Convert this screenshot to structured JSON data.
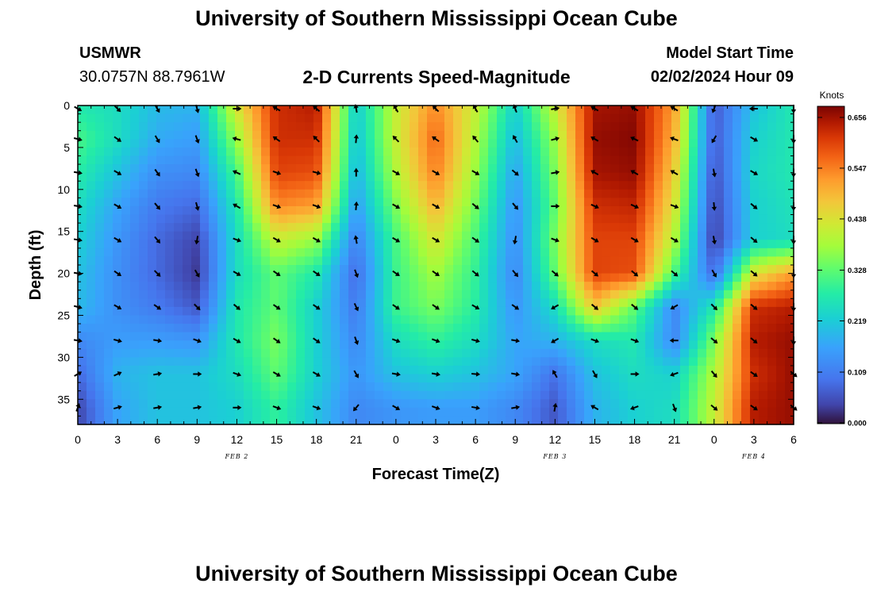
{
  "page": {
    "title": "University of Southern Mississippi Ocean Cube",
    "bottom_title": "University of Southern Mississippi Ocean Cube",
    "station": "USMWR",
    "coords": "30.0757N  88.7961W",
    "subtitle": "2-D Currents Speed-Magnitude",
    "model_start_label": "Model Start Time",
    "model_start_value": "02/02/2024 Hour 09"
  },
  "chart_data": {
    "type": "heatmap",
    "title": "2-D Currents Speed-Magnitude",
    "xlabel": "Forecast Time(Z)",
    "ylabel": "Depth (ft)",
    "x_tick_labels": [
      "0",
      "3",
      "6",
      "9",
      "12",
      "15",
      "18",
      "21",
      "0",
      "3",
      "6",
      "9",
      "12",
      "15",
      "18",
      "21",
      "0",
      "3",
      "6"
    ],
    "x_range_hours": [
      0,
      54
    ],
    "date_labels": [
      {
        "text": "FEB 2",
        "hour": 12
      },
      {
        "text": "FEB 3",
        "hour": 36
      },
      {
        "text": "FEB 4",
        "hour": 51
      }
    ],
    "y_ticks": [
      0,
      5,
      10,
      15,
      20,
      25,
      30,
      35
    ],
    "y_range_ft": [
      0,
      38
    ],
    "colorbar": {
      "units": "Knots",
      "tick_values": [
        "0.656",
        "0.547",
        "0.438",
        "0.328",
        "0.219",
        "0.109",
        "0.000"
      ],
      "min": 0.0,
      "max": 0.656
    },
    "depths_ft": [
      0,
      4,
      8,
      12,
      16,
      20,
      24,
      28,
      32,
      36
    ],
    "hours": [
      0,
      3,
      6,
      9,
      12,
      15,
      18,
      21,
      24,
      27,
      30,
      33,
      36,
      39,
      42,
      45,
      48,
      51,
      54
    ],
    "speed_knots": [
      [
        0.26,
        0.24,
        0.19,
        0.18,
        0.42,
        0.6,
        0.62,
        0.21,
        0.4,
        0.52,
        0.4,
        0.22,
        0.4,
        0.63,
        0.64,
        0.5,
        0.06,
        0.2,
        0.26
      ],
      [
        0.3,
        0.24,
        0.17,
        0.15,
        0.36,
        0.6,
        0.6,
        0.2,
        0.4,
        0.55,
        0.38,
        0.19,
        0.36,
        0.64,
        0.65,
        0.48,
        0.06,
        0.22,
        0.26
      ],
      [
        0.27,
        0.2,
        0.13,
        0.12,
        0.3,
        0.58,
        0.57,
        0.18,
        0.38,
        0.53,
        0.36,
        0.16,
        0.34,
        0.63,
        0.64,
        0.45,
        0.05,
        0.23,
        0.26
      ],
      [
        0.24,
        0.16,
        0.1,
        0.08,
        0.26,
        0.52,
        0.5,
        0.15,
        0.34,
        0.48,
        0.33,
        0.14,
        0.32,
        0.6,
        0.61,
        0.42,
        0.04,
        0.22,
        0.25
      ],
      [
        0.22,
        0.14,
        0.08,
        0.04,
        0.24,
        0.4,
        0.36,
        0.11,
        0.3,
        0.42,
        0.3,
        0.13,
        0.34,
        0.58,
        0.58,
        0.38,
        0.03,
        0.22,
        0.24
      ],
      [
        0.2,
        0.13,
        0.08,
        0.03,
        0.24,
        0.32,
        0.26,
        0.08,
        0.29,
        0.37,
        0.28,
        0.12,
        0.32,
        0.58,
        0.57,
        0.3,
        0.08,
        0.42,
        0.5
      ],
      [
        0.19,
        0.13,
        0.1,
        0.06,
        0.26,
        0.32,
        0.22,
        0.1,
        0.29,
        0.34,
        0.27,
        0.14,
        0.24,
        0.46,
        0.32,
        0.12,
        0.26,
        0.6,
        0.62
      ],
      [
        0.12,
        0.15,
        0.15,
        0.14,
        0.26,
        0.34,
        0.22,
        0.12,
        0.24,
        0.28,
        0.24,
        0.16,
        0.18,
        0.24,
        0.26,
        0.12,
        0.34,
        0.62,
        0.64
      ],
      [
        0.08,
        0.18,
        0.2,
        0.2,
        0.24,
        0.32,
        0.22,
        0.14,
        0.2,
        0.22,
        0.2,
        0.16,
        0.09,
        0.2,
        0.24,
        0.22,
        0.38,
        0.6,
        0.64
      ],
      [
        0.04,
        0.16,
        0.2,
        0.2,
        0.22,
        0.28,
        0.2,
        0.12,
        0.14,
        0.15,
        0.15,
        0.12,
        0.06,
        0.18,
        0.22,
        0.24,
        0.4,
        0.62,
        0.64
      ]
    ],
    "direction_deg": [
      [
        120,
        135,
        150,
        165,
        90,
        300,
        310,
        350,
        330,
        315,
        330,
        340,
        80,
        300,
        300,
        300,
        200,
        270,
        180
      ],
      [
        105,
        125,
        150,
        160,
        285,
        305,
        315,
        5,
        315,
        305,
        320,
        330,
        75,
        300,
        295,
        290,
        210,
        120,
        180
      ],
      [
        100,
        120,
        145,
        160,
        295,
        110,
        105,
        0,
        120,
        120,
        120,
        130,
        80,
        300,
        300,
        300,
        170,
        120,
        180
      ],
      [
        100,
        120,
        140,
        165,
        300,
        110,
        110,
        5,
        120,
        120,
        130,
        140,
        90,
        115,
        115,
        110,
        175,
        130,
        180
      ],
      [
        100,
        120,
        140,
        190,
        110,
        120,
        120,
        350,
        120,
        120,
        125,
        190,
        110,
        120,
        120,
        120,
        170,
        130,
        180
      ],
      [
        100,
        125,
        135,
        150,
        120,
        125,
        125,
        160,
        125,
        125,
        130,
        140,
        130,
        130,
        130,
        130,
        150,
        130,
        180
      ],
      [
        105,
        120,
        125,
        135,
        130,
        125,
        125,
        155,
        125,
        125,
        120,
        125,
        240,
        130,
        130,
        240,
        135,
        130,
        180
      ],
      [
        100,
        105,
        100,
        110,
        120,
        125,
        125,
        160,
        110,
        110,
        105,
        100,
        240,
        110,
        110,
        270,
        130,
        130,
        180
      ],
      [
        60,
        65,
        80,
        90,
        110,
        120,
        120,
        150,
        100,
        100,
        95,
        100,
        330,
        150,
        90,
        250,
        140,
        125,
        130
      ],
      [
        20,
        75,
        80,
        80,
        90,
        110,
        110,
        220,
        120,
        110,
        100,
        80,
        10,
        300,
        250,
        160,
        130,
        125,
        130
      ]
    ]
  }
}
